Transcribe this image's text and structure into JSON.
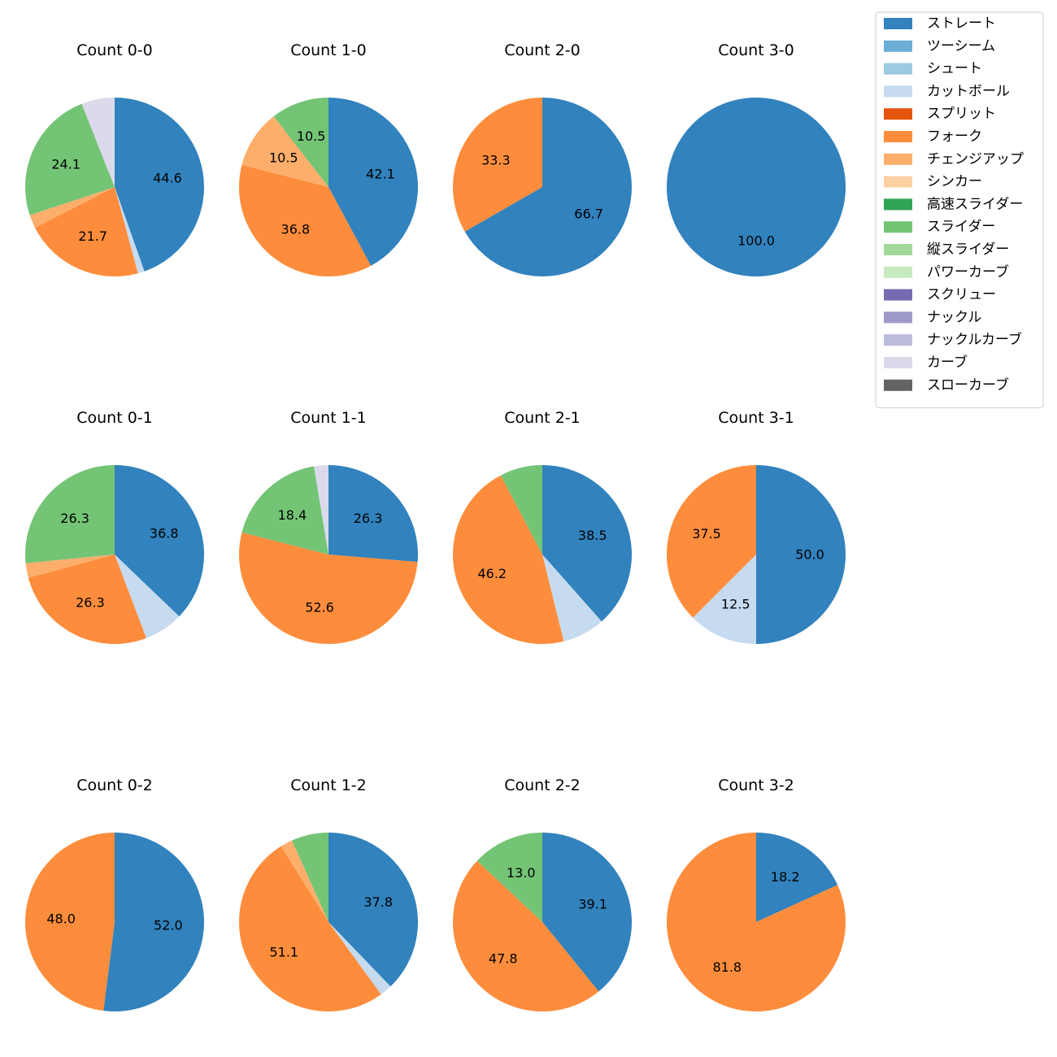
{
  "legend": {
    "placement": "top-right",
    "items": [
      {
        "name": "ストレート",
        "color": "#3182bd"
      },
      {
        "name": "ツーシーム",
        "color": "#6baed6"
      },
      {
        "name": "シュート",
        "color": "#9ecae1"
      },
      {
        "name": "カットボール",
        "color": "#c6dbef"
      },
      {
        "name": "スプリット",
        "color": "#e6550d"
      },
      {
        "name": "フォーク",
        "color": "#fd8d3c"
      },
      {
        "name": "チェンジアップ",
        "color": "#fdae6b"
      },
      {
        "name": "シンカー",
        "color": "#fdd0a2"
      },
      {
        "name": "高速スライダー",
        "color": "#31a354"
      },
      {
        "name": "スライダー",
        "color": "#74c476"
      },
      {
        "name": "縦スライダー",
        "color": "#a1d99b"
      },
      {
        "name": "パワーカーブ",
        "color": "#c7e9c0"
      },
      {
        "name": "スクリュー",
        "color": "#756bb1"
      },
      {
        "name": "ナックル",
        "color": "#9e9ac8"
      },
      {
        "name": "ナックルカーブ",
        "color": "#bcbddc"
      },
      {
        "name": "カーブ",
        "color": "#dadaeb"
      },
      {
        "name": "スローカーブ",
        "color": "#636363"
      }
    ]
  },
  "chart_data": [
    {
      "type": "pie",
      "title": "Count 0-0",
      "slices": [
        {
          "name": "ストレート",
          "value": 44.6,
          "label": "44.6"
        },
        {
          "name": "カットボール",
          "value": 1.2,
          "label": ""
        },
        {
          "name": "フォーク",
          "value": 21.7,
          "label": "21.7"
        },
        {
          "name": "チェンジアップ",
          "value": 2.4,
          "label": ""
        },
        {
          "name": "スライダー",
          "value": 24.1,
          "label": "24.1"
        },
        {
          "name": "カーブ",
          "value": 6.0,
          "label": ""
        }
      ]
    },
    {
      "type": "pie",
      "title": "Count 1-0",
      "slices": [
        {
          "name": "ストレート",
          "value": 42.1,
          "label": "42.1"
        },
        {
          "name": "フォーク",
          "value": 36.8,
          "label": "36.8"
        },
        {
          "name": "チェンジアップ",
          "value": 10.5,
          "label": "10.5"
        },
        {
          "name": "スライダー",
          "value": 10.5,
          "label": "10.5"
        }
      ]
    },
    {
      "type": "pie",
      "title": "Count 2-0",
      "slices": [
        {
          "name": "ストレート",
          "value": 66.7,
          "label": "66.7"
        },
        {
          "name": "フォーク",
          "value": 33.3,
          "label": "33.3"
        }
      ]
    },
    {
      "type": "pie",
      "title": "Count 3-0",
      "slices": [
        {
          "name": "ストレート",
          "value": 100.0,
          "label": "100.0"
        }
      ]
    },
    {
      "type": "pie",
      "title": "Count 0-1",
      "slices": [
        {
          "name": "ストレート",
          "value": 36.8,
          "label": "36.8"
        },
        {
          "name": "カットボール",
          "value": 7.0,
          "label": ""
        },
        {
          "name": "フォーク",
          "value": 26.3,
          "label": "26.3"
        },
        {
          "name": "チェンジアップ",
          "value": 2.6,
          "label": ""
        },
        {
          "name": "スライダー",
          "value": 26.3,
          "label": "26.3"
        }
      ]
    },
    {
      "type": "pie",
      "title": "Count 1-1",
      "slices": [
        {
          "name": "ストレート",
          "value": 26.3,
          "label": "26.3"
        },
        {
          "name": "フォーク",
          "value": 52.6,
          "label": "52.6"
        },
        {
          "name": "スライダー",
          "value": 18.4,
          "label": "18.4"
        },
        {
          "name": "カーブ",
          "value": 2.6,
          "label": ""
        }
      ]
    },
    {
      "type": "pie",
      "title": "Count 2-1",
      "slices": [
        {
          "name": "ストレート",
          "value": 38.5,
          "label": "38.5"
        },
        {
          "name": "カットボール",
          "value": 7.7,
          "label": ""
        },
        {
          "name": "フォーク",
          "value": 46.2,
          "label": "46.2"
        },
        {
          "name": "スライダー",
          "value": 7.7,
          "label": ""
        }
      ]
    },
    {
      "type": "pie",
      "title": "Count 3-1",
      "slices": [
        {
          "name": "ストレート",
          "value": 50.0,
          "label": "50.0"
        },
        {
          "name": "カットボール",
          "value": 12.5,
          "label": "12.5"
        },
        {
          "name": "フォーク",
          "value": 37.5,
          "label": "37.5"
        }
      ]
    },
    {
      "type": "pie",
      "title": "Count 0-2",
      "slices": [
        {
          "name": "ストレート",
          "value": 52.0,
          "label": "52.0"
        },
        {
          "name": "フォーク",
          "value": 48.0,
          "label": "48.0"
        }
      ]
    },
    {
      "type": "pie",
      "title": "Count 1-2",
      "slices": [
        {
          "name": "ストレート",
          "value": 37.8,
          "label": "37.8"
        },
        {
          "name": "カットボール",
          "value": 2.2,
          "label": ""
        },
        {
          "name": "フォーク",
          "value": 51.1,
          "label": "51.1"
        },
        {
          "name": "チェンジアップ",
          "value": 2.2,
          "label": ""
        },
        {
          "name": "スライダー",
          "value": 6.7,
          "label": ""
        }
      ]
    },
    {
      "type": "pie",
      "title": "Count 2-2",
      "slices": [
        {
          "name": "ストレート",
          "value": 39.1,
          "label": "39.1"
        },
        {
          "name": "フォーク",
          "value": 47.8,
          "label": "47.8"
        },
        {
          "name": "スライダー",
          "value": 13.0,
          "label": "13.0"
        }
      ]
    },
    {
      "type": "pie",
      "title": "Count 3-2",
      "slices": [
        {
          "name": "ストレート",
          "value": 18.2,
          "label": "18.2"
        },
        {
          "name": "フォーク",
          "value": 81.8,
          "label": "81.8"
        }
      ]
    }
  ]
}
